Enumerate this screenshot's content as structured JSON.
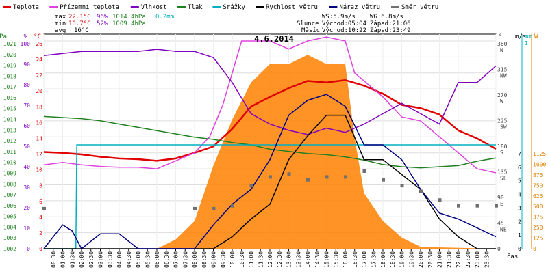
{
  "chart_data": {
    "type": "line",
    "title": "4.6.2014",
    "x_tick_labels": [
      "00:30",
      "01:00",
      "01:30",
      "02:00",
      "02:30",
      "03:00",
      "03:30",
      "04:00",
      "04:30",
      "05:00",
      "05:30",
      "06:00",
      "06:30",
      "07:00",
      "07:30",
      "08:00",
      "08:30",
      "09:00",
      "09:30",
      "10:00",
      "10:30",
      "11:00",
      "11:30",
      "12:00",
      "12:30",
      "13:00",
      "13:30",
      "14:00",
      "14:30",
      "15:00",
      "15:30",
      "16:00",
      "16:30",
      "17:00",
      "17:30",
      "18:00",
      "18:30",
      "19:00",
      "19:30",
      "20:00",
      "20:30",
      "21:00",
      "21:30",
      "22:00",
      "22:30",
      "23:00",
      "23:30"
    ],
    "x_axis_label": "čas",
    "x_range_hours": [
      0,
      24
    ],
    "legend": [
      {
        "label": "Teplota",
        "color": "#e00000"
      },
      {
        "label": "Přízemní teplota",
        "color": "#e040e0"
      },
      {
        "label": "Vlhkost",
        "color": "#8000c0"
      },
      {
        "label": "Tlak",
        "color": "#208020"
      },
      {
        "label": "Srážky",
        "color": "#00b0c0"
      },
      {
        "label": "Rychlost větru",
        "color": "#000000"
      },
      {
        "label": "Náraz větru",
        "color": "#000080"
      },
      {
        "label": "Směr větru",
        "color": "#707070"
      }
    ],
    "stats": {
      "max": {
        "label": "max",
        "temp": "22.1°C",
        "hum": "96%",
        "press": "1014.4hPa",
        "rain": "0.2mm"
      },
      "min": {
        "label": "min",
        "temp": "10.7°C",
        "hum": "52%",
        "press": "1009.4hPa"
      },
      "avg": {
        "label": "avg",
        "temp": "16°C"
      }
    },
    "info": {
      "ws": "WS:5.9m/s",
      "wg": "WG:6.8m/s",
      "slunce_label": "Slunce",
      "slunce_vychod": "Východ:05:04",
      "slunce_zapad": "Západ:21:06",
      "mesic_label": "Měsíc",
      "mesic_vychod": "Východ:10:22",
      "mesic_zapad": "Západ:23:49"
    },
    "axes": {
      "hpa": {
        "unit": "hPa",
        "ticks": [
          "1021",
          "1020",
          "1019",
          "1018",
          "1017",
          "1016",
          "1015",
          "1014",
          "1013",
          "1012",
          "1011",
          "1010",
          "1009",
          "1008",
          "1007",
          "1006",
          "1005",
          "1004",
          "1003",
          "1002"
        ],
        "range": [
          1002,
          1021
        ],
        "color": "#208020"
      },
      "pct": {
        "unit": "%",
        "ticks": [
          "100",
          "90",
          "80",
          "70",
          "60",
          "50",
          "40",
          "30",
          "20",
          "10",
          "0"
        ],
        "range": [
          0,
          100
        ],
        "color": "#8000c0"
      },
      "degc": {
        "unit": "°C",
        "ticks": [
          "26",
          "24",
          "22",
          "20",
          "18",
          "16",
          "14",
          "12",
          "10",
          "8",
          "6",
          "4",
          "2",
          "0"
        ],
        "range": [
          0,
          26
        ],
        "color": "#e00000"
      },
      "dir": {
        "unit": "°",
        "ticks": [
          {
            "v": "360",
            "d": "N"
          },
          {
            "v": "315",
            "d": "NW"
          },
          {
            "v": "270",
            "d": "W"
          },
          {
            "v": "225",
            "d": "SW"
          },
          {
            "v": "180",
            "d": "S"
          },
          {
            "v": "135",
            "d": "SE"
          },
          {
            "v": "90",
            "d": "E"
          },
          {
            "v": "45",
            "d": "NE"
          },
          {
            "v": "0",
            "d": ""
          }
        ],
        "range": [
          0,
          360
        ],
        "color": "#404040"
      },
      "ms": {
        "unit": "m/s",
        "ticks": [
          "7",
          "6",
          "5",
          "4",
          "3",
          "2",
          "1",
          "0"
        ],
        "range": [
          0,
          7
        ],
        "color": "#000000"
      },
      "mm": {
        "unit": "mm",
        "ticks": [
          "1"
        ],
        "color": "#00b0c0"
      },
      "wm2": {
        "unit": "W",
        "ticks": [
          "1125",
          "1000",
          "875",
          "750",
          "625",
          "500",
          "375",
          "250",
          "125",
          "0"
        ],
        "range": [
          0,
          1125
        ],
        "color": "#e08000"
      }
    },
    "series": [
      {
        "name": "Teplota",
        "color": "#e00000",
        "x": [
          0,
          1,
          2,
          3,
          4,
          5,
          6,
          7,
          8,
          9,
          10,
          11,
          12,
          13,
          14,
          15,
          16,
          17,
          18,
          19,
          20,
          21,
          22,
          23,
          24
        ],
        "y": [
          12.1,
          12.0,
          11.8,
          11.5,
          11.3,
          11.2,
          11.0,
          11.3,
          12.0,
          12.8,
          15.0,
          17.8,
          19.0,
          20.1,
          21.0,
          20.8,
          21.1,
          20.4,
          19.4,
          18.0,
          17.6,
          16.8,
          14.8,
          13.8,
          12.5
        ]
      },
      {
        "name": "Přízemní teplota",
        "color": "#e040e0",
        "x": [
          0,
          1,
          2,
          3,
          4,
          5,
          6,
          7,
          8,
          8.8,
          9.5,
          10.5,
          11,
          12,
          13,
          14,
          15,
          16,
          16.5,
          17,
          18,
          19,
          20,
          21,
          22,
          23,
          24
        ],
        "y": [
          10.5,
          10.8,
          10.5,
          10.3,
          10.2,
          10.2,
          10.0,
          11.0,
          12.0,
          14.0,
          18.0,
          26.0,
          26.0,
          26.0,
          25.0,
          26.0,
          26.5,
          26.0,
          22.0,
          21.0,
          19.0,
          16.5,
          16.0,
          14.0,
          12.0,
          10.0,
          9.5
        ]
      },
      {
        "name": "Vlhkost",
        "color": "#8000c0",
        "x": [
          0,
          1,
          2,
          3,
          4,
          5,
          6,
          7,
          8,
          9,
          10,
          11,
          12,
          13,
          14,
          15,
          16,
          17,
          18,
          19,
          20,
          21,
          22,
          23,
          24
        ],
        "y": [
          93,
          94,
          95,
          95,
          95,
          95,
          96,
          95,
          95,
          92,
          80,
          65,
          60,
          57,
          55,
          58,
          56,
          60,
          65,
          70,
          65,
          60,
          80,
          80,
          88
        ]
      },
      {
        "name": "Tlak",
        "color": "#208020",
        "x": [
          0,
          1,
          2,
          3,
          4,
          5,
          6,
          7,
          8,
          9,
          10,
          11,
          12,
          13,
          14,
          15,
          16,
          17,
          18,
          19,
          20,
          21,
          22,
          23,
          24
        ],
        "y": [
          1014.1,
          1014.0,
          1013.9,
          1013.7,
          1013.4,
          1013.1,
          1012.8,
          1012.5,
          1012.2,
          1012.0,
          1011.7,
          1011.5,
          1011.1,
          1010.9,
          1010.7,
          1010.6,
          1010.4,
          1010.1,
          1009.7,
          1009.5,
          1009.4,
          1009.5,
          1009.6,
          1010.0,
          1010.3
        ]
      },
      {
        "name": "Srážky",
        "color": "#00b0c0",
        "x": [
          0,
          1.7,
          1.75,
          24
        ],
        "y": [
          0,
          0,
          0.2,
          0.2
        ]
      },
      {
        "name": "Rychlost větru",
        "color": "#000000",
        "x": [
          0,
          9,
          10,
          11,
          12,
          13,
          14,
          15,
          16,
          17,
          18,
          19,
          20,
          21,
          22,
          23,
          24
        ],
        "y": [
          0,
          0,
          0.4,
          1.0,
          1.5,
          3.0,
          3.8,
          4.5,
          4.5,
          3.0,
          3.0,
          2.5,
          2.0,
          1.0,
          0.4,
          0.0,
          0.0
        ]
      },
      {
        "name": "Náraz větru",
        "color": "#000080",
        "x": [
          0,
          1,
          1.5,
          2,
          3,
          4,
          5,
          6,
          7,
          8,
          9,
          10,
          11,
          12,
          13,
          14,
          15,
          16,
          17,
          18,
          19,
          20,
          21,
          22,
          23,
          24
        ],
        "y": [
          0,
          0.8,
          0.6,
          0,
          0.5,
          0.5,
          0,
          0,
          0,
          0,
          0.8,
          1.5,
          2.0,
          3.0,
          4.5,
          5.0,
          5.2,
          4.8,
          3.5,
          3.5,
          3.0,
          2.0,
          1.2,
          1.0,
          0.7,
          0.4
        ]
      },
      {
        "name": "Směr větru",
        "color": "#707070",
        "x": [
          0,
          8,
          9,
          10,
          11,
          12,
          13,
          14,
          15,
          16,
          17,
          18,
          19,
          20,
          21,
          22,
          23,
          24
        ],
        "y": [
          70,
          70,
          70,
          75,
          110,
          125,
          130,
          120,
          125,
          125,
          135,
          120,
          110,
          100,
          85,
          75,
          75,
          75
        ]
      },
      {
        "name": "Solar",
        "color": "#ff8000",
        "x": [
          0,
          5,
          6,
          7,
          8,
          9,
          10,
          11,
          12,
          13,
          14,
          15,
          16,
          16.5,
          17,
          18,
          19,
          20,
          24
        ],
        "y": [
          0,
          0,
          0,
          50,
          150,
          450,
          700,
          900,
          1000,
          1000,
          1050,
          1000,
          1000,
          600,
          300,
          150,
          60,
          10,
          0
        ]
      }
    ]
  }
}
